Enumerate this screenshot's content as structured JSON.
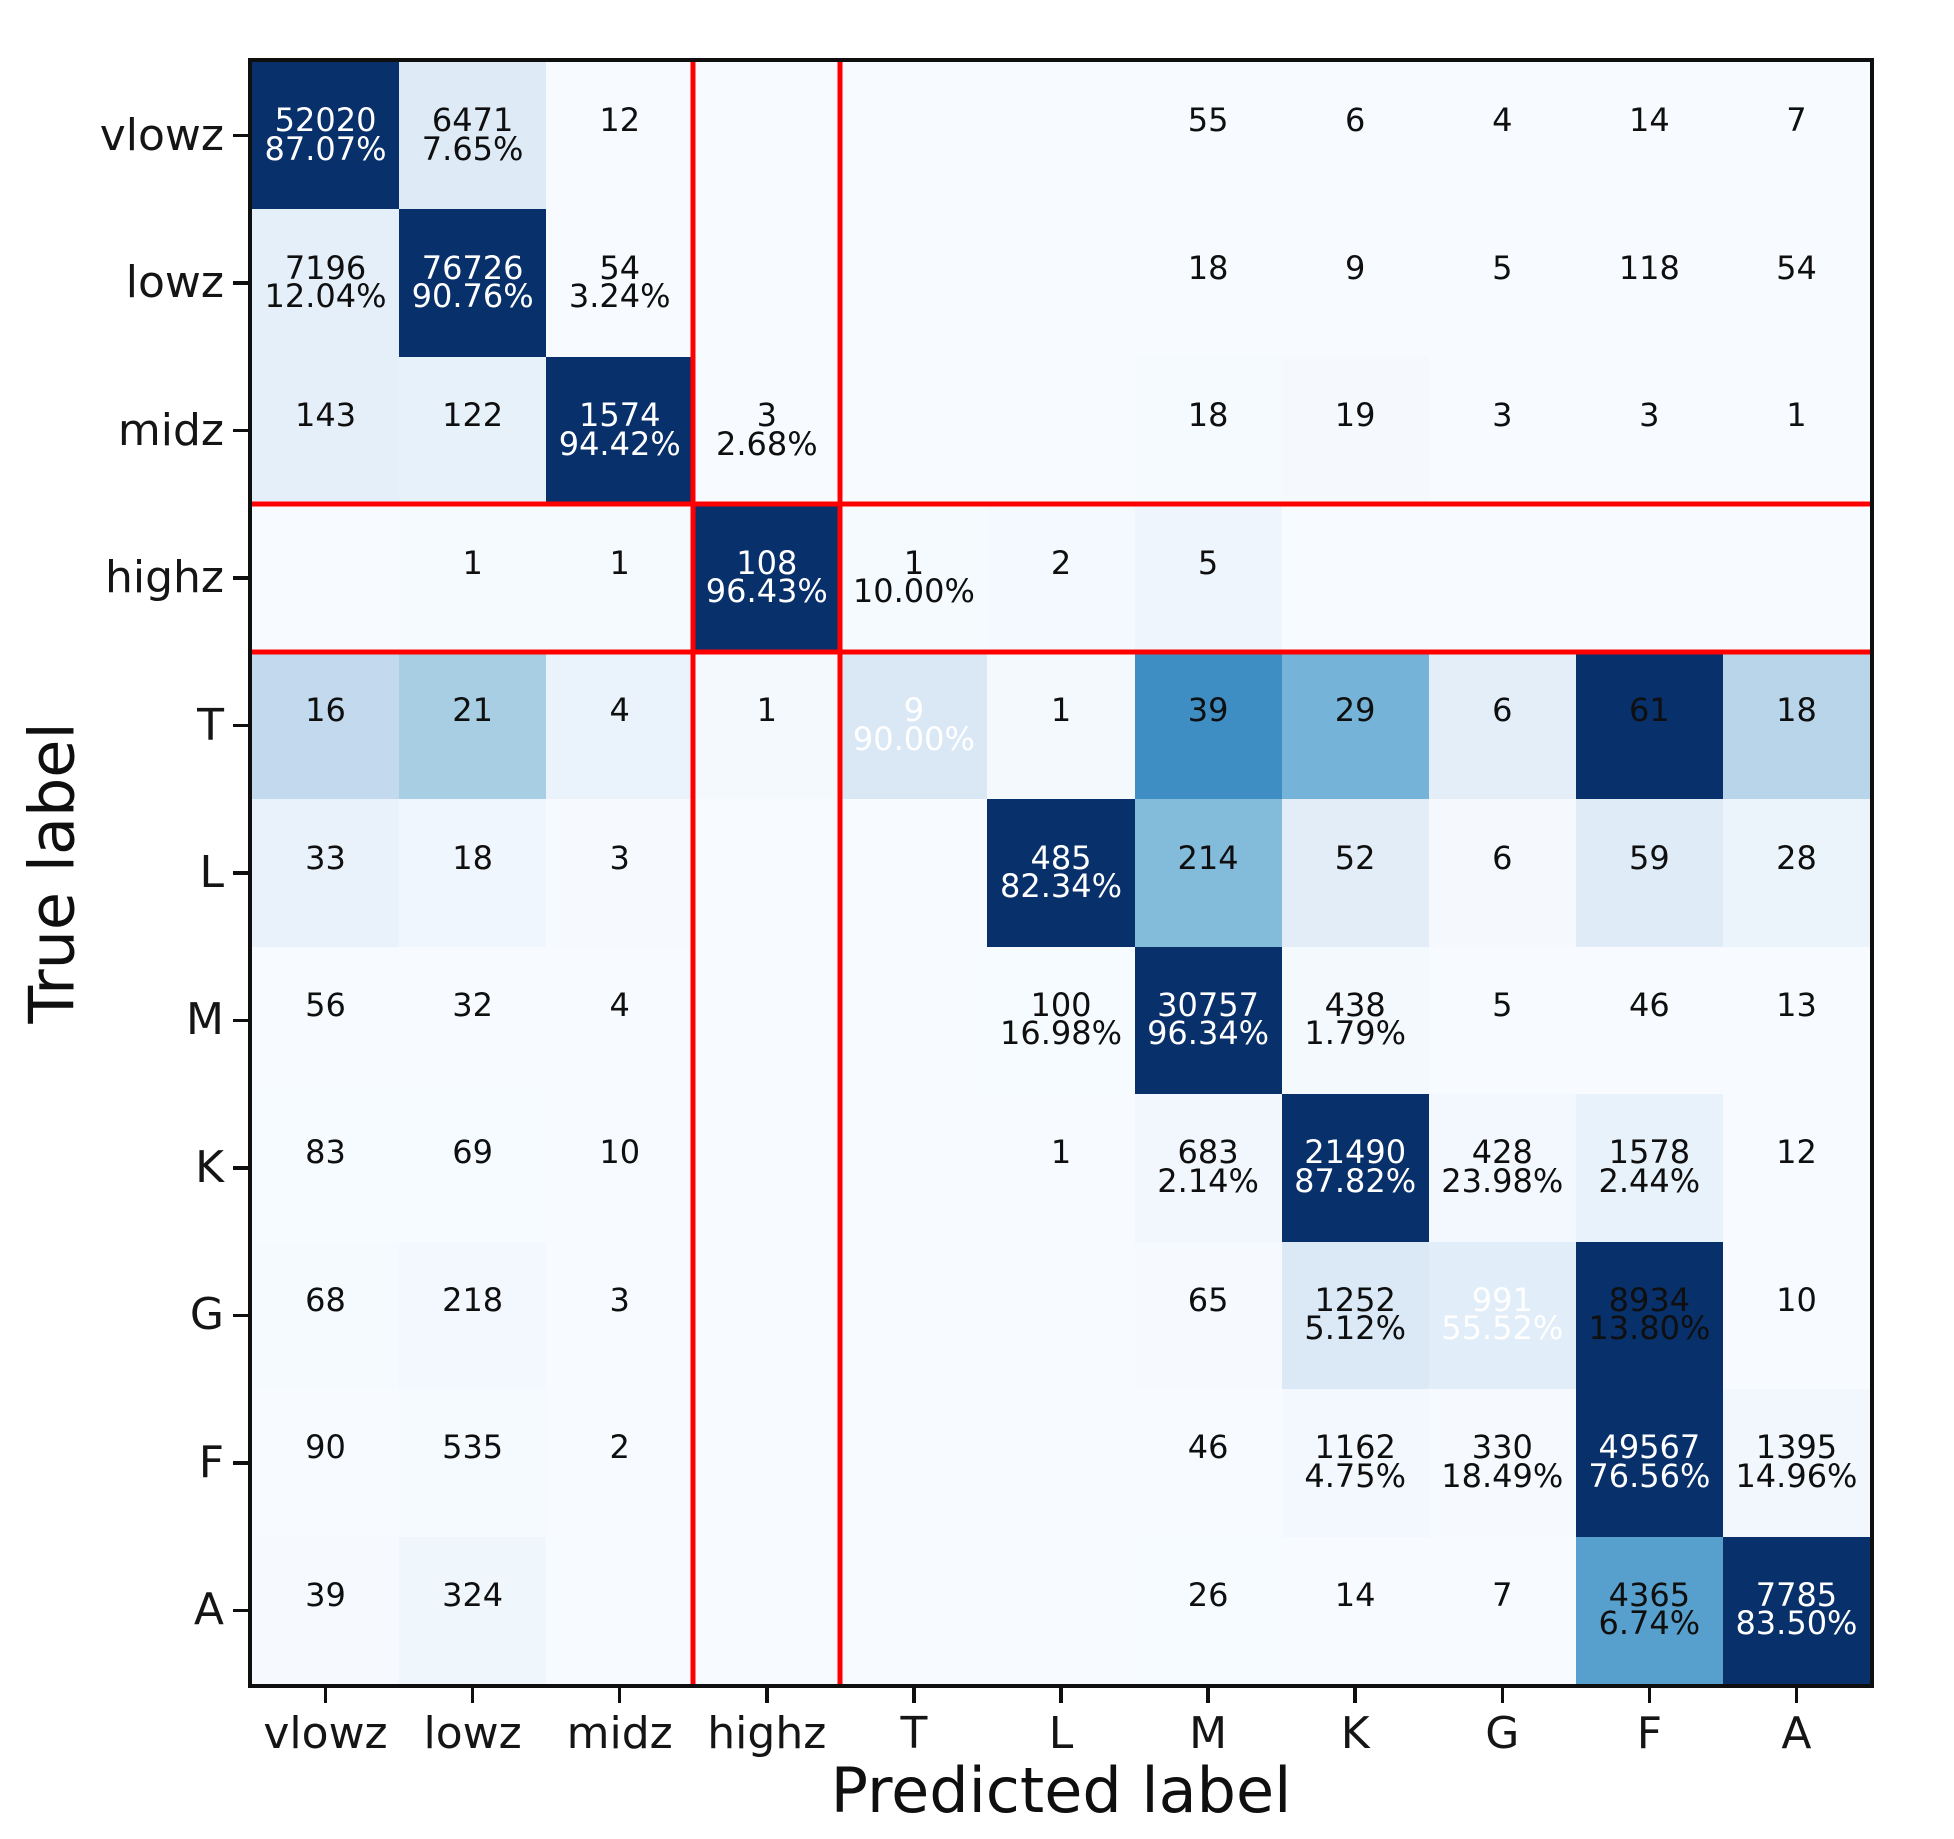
{
  "chart_data": {
    "type": "heatmap",
    "title": "",
    "xlabel": "Predicted label",
    "ylabel": "True label",
    "classes": [
      "vlowz",
      "lowz",
      "midz",
      "highz",
      "T",
      "L",
      "M",
      "K",
      "G",
      "F",
      "A"
    ],
    "x_tick_labels": [
      "vlowz",
      "lowz",
      "midz",
      "highz",
      "T",
      "L",
      "M",
      "K",
      "G",
      "F",
      "A"
    ],
    "y_tick_labels": [
      "vlowz",
      "lowz",
      "midz",
      "highz",
      "T",
      "L",
      "M",
      "K",
      "G",
      "F",
      "A"
    ],
    "matrix": [
      [
        52020,
        6471,
        12,
        0,
        0,
        0,
        55,
        6,
        4,
        14,
        7
      ],
      [
        7196,
        76726,
        54,
        0,
        0,
        0,
        18,
        9,
        5,
        118,
        54
      ],
      [
        143,
        122,
        1574,
        3,
        0,
        0,
        18,
        19,
        3,
        3,
        1
      ],
      [
        0,
        1,
        1,
        108,
        1,
        2,
        5,
        0,
        0,
        0,
        0
      ],
      [
        16,
        21,
        4,
        1,
        9,
        1,
        39,
        29,
        6,
        61,
        18
      ],
      [
        33,
        18,
        3,
        0,
        0,
        485,
        214,
        52,
        6,
        59,
        28
      ],
      [
        56,
        32,
        4,
        0,
        0,
        100,
        30757,
        438,
        5,
        46,
        13
      ],
      [
        83,
        69,
        10,
        0,
        0,
        1,
        683,
        21490,
        428,
        1578,
        12
      ],
      [
        68,
        218,
        3,
        0,
        0,
        0,
        65,
        1252,
        991,
        8934,
        10
      ],
      [
        90,
        535,
        2,
        0,
        0,
        0,
        46,
        1162,
        330,
        49567,
        1395
      ],
      [
        39,
        324,
        0,
        0,
        0,
        0,
        26,
        14,
        7,
        4365,
        7785
      ]
    ],
    "percent_labels": [
      [
        "87.07%",
        "7.65%",
        "",
        "",
        "",
        "",
        "",
        "",
        "",
        "",
        ""
      ],
      [
        "12.04%",
        "90.76%",
        "3.24%",
        "",
        "",
        "",
        "",
        "",
        "",
        "",
        ""
      ],
      [
        "",
        "",
        "94.42%",
        "2.68%",
        "",
        "",
        "",
        "",
        "",
        "",
        ""
      ],
      [
        "",
        "",
        "",
        "96.43%",
        "10.00%",
        "",
        "",
        "",
        "",
        "",
        ""
      ],
      [
        "",
        "",
        "",
        "",
        "90.00%",
        "",
        "",
        "",
        "",
        "",
        ""
      ],
      [
        "",
        "",
        "",
        "",
        "",
        "82.34%",
        "",
        "",
        "",
        "",
        ""
      ],
      [
        "",
        "",
        "",
        "",
        "",
        "16.98%",
        "96.34%",
        "1.79%",
        "",
        "",
        ""
      ],
      [
        "",
        "",
        "",
        "",
        "",
        "",
        "2.14%",
        "87.82%",
        "23.98%",
        "2.44%",
        ""
      ],
      [
        "",
        "",
        "",
        "",
        "",
        "",
        "",
        "5.12%",
        "55.52%",
        "13.80%",
        ""
      ],
      [
        "",
        "",
        "",
        "",
        "",
        "",
        "",
        "4.75%",
        "18.49%",
        "76.56%",
        "14.96%"
      ],
      [
        "",
        "",
        "",
        "",
        "",
        "",
        "",
        "",
        "",
        "6.74%",
        "83.50%"
      ]
    ],
    "highlight": {
      "row": "highz",
      "col": "highz",
      "color": "#ff0000"
    },
    "legend": "none",
    "grid": "off"
  },
  "colors": {
    "background": "#ffffff",
    "spine": "#0f0f0f",
    "tick": "#0f0f0f",
    "text_dark": "#0f0f0f",
    "text_light": "#ffffff",
    "highlight_red": "#ff0000",
    "blues_anchors": [
      [
        0.0,
        "#f7fbff"
      ],
      [
        0.125,
        "#deebf7"
      ],
      [
        0.25,
        "#c6dbef"
      ],
      [
        0.375,
        "#9ecae1"
      ],
      [
        0.5,
        "#6baed6"
      ],
      [
        0.625,
        "#4292c6"
      ],
      [
        0.75,
        "#2171b5"
      ],
      [
        0.875,
        "#08519c"
      ],
      [
        1.0,
        "#08306b"
      ]
    ]
  }
}
